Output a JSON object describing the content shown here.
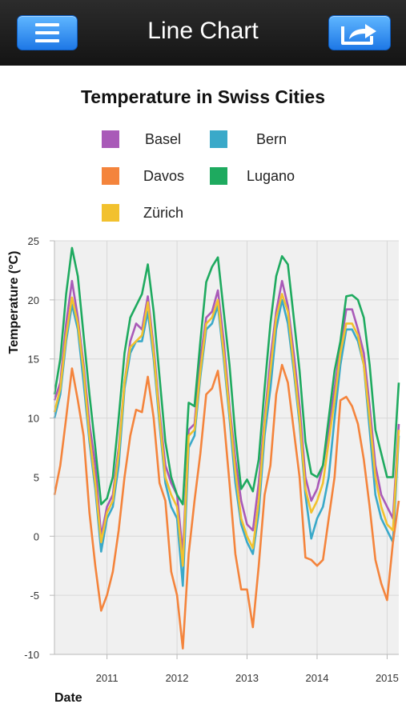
{
  "header": {
    "title": "Line Chart",
    "menu_icon": "hamburger-menu-icon",
    "share_icon": "share-icon"
  },
  "colors": {
    "nav_button": "#2a8cf5",
    "plot_background": "#f0f0f0",
    "grid": "#d8d8d8"
  },
  "chart_data": {
    "type": "line",
    "title": "Temperature in Swiss Cities",
    "xlabel": "Date",
    "ylabel": "Temperature (°C)",
    "ylim": [
      -10,
      25
    ],
    "yticks": [
      -10,
      -5,
      0,
      5,
      10,
      15,
      20,
      25
    ],
    "xlim": [
      "2010-04",
      "2015-03"
    ],
    "xticks": [
      "2011",
      "2012",
      "2013",
      "2014",
      "2015"
    ],
    "grid": true,
    "legend_placement": "top",
    "x": [
      "2010-04",
      "2010-05",
      "2010-06",
      "2010-07",
      "2010-08",
      "2010-09",
      "2010-10",
      "2010-11",
      "2010-12",
      "2011-01",
      "2011-02",
      "2011-03",
      "2011-04",
      "2011-05",
      "2011-06",
      "2011-07",
      "2011-08",
      "2011-09",
      "2011-10",
      "2011-11",
      "2011-12",
      "2012-01",
      "2012-02",
      "2012-03",
      "2012-04",
      "2012-05",
      "2012-06",
      "2012-07",
      "2012-08",
      "2012-09",
      "2012-10",
      "2012-11",
      "2012-12",
      "2013-01",
      "2013-02",
      "2013-03",
      "2013-04",
      "2013-05",
      "2013-06",
      "2013-07",
      "2013-08",
      "2013-09",
      "2013-10",
      "2013-11",
      "2013-12",
      "2014-01",
      "2014-02",
      "2014-03",
      "2014-04",
      "2014-05",
      "2014-06",
      "2014-07",
      "2014-08",
      "2014-09",
      "2014-10",
      "2014-11",
      "2014-12",
      "2015-01",
      "2015-02",
      "2015-03"
    ],
    "series": [
      {
        "name": "Basel",
        "color": "#a95ab8",
        "values": [
          11.5,
          13,
          18,
          21.6,
          18.5,
          14.5,
          9.5,
          6,
          0,
          2.5,
          3.5,
          7.5,
          13,
          16.5,
          18,
          17.5,
          20.3,
          16,
          10.5,
          6,
          4.5,
          3.5,
          -1.5,
          9,
          9.5,
          15,
          18.5,
          19,
          20.8,
          16.5,
          11,
          6.5,
          3,
          1,
          0.5,
          4.5,
          10,
          15,
          19,
          21.6,
          19.5,
          15.5,
          11,
          5,
          3,
          4,
          6,
          9,
          12.5,
          16,
          19.2,
          19.2,
          17.5,
          15.5,
          11,
          6,
          3.5,
          2.5,
          1.5,
          9.5
        ]
      },
      {
        "name": "Bern",
        "color": "#3aa9c9",
        "values": [
          10,
          12,
          16.5,
          19.6,
          17.5,
          13,
          8,
          4,
          -1.3,
          1.5,
          2.5,
          6,
          12.5,
          15.5,
          16.5,
          16.5,
          19,
          15,
          9.5,
          4.5,
          2.5,
          1.5,
          -4.2,
          7.5,
          8.5,
          13.5,
          17.5,
          18,
          19.5,
          15,
          10,
          4.5,
          1,
          -0.5,
          -1.5,
          2,
          8.5,
          12.5,
          17.5,
          20,
          18,
          14,
          9.5,
          3.5,
          -0.2,
          1.5,
          2.5,
          5,
          10,
          14.5,
          17.5,
          17.5,
          16.5,
          14.5,
          9,
          3.5,
          1.5,
          0.5,
          -0.5,
          8.5
        ]
      },
      {
        "name": "Davos",
        "color": "#f4843c",
        "values": [
          3.5,
          6,
          10,
          14.2,
          11.5,
          8.5,
          2,
          -2.5,
          -6.3,
          -5,
          -3,
          0.5,
          5,
          8.5,
          10.7,
          10.5,
          13.5,
          10,
          4.5,
          3,
          -3,
          -5,
          -9.5,
          -1.5,
          3,
          7,
          12,
          12.5,
          14,
          10,
          4.5,
          -1.5,
          -4.5,
          -4.5,
          -7.7,
          -2.5,
          3.5,
          6,
          12,
          14.5,
          13,
          9,
          5,
          -1.8,
          -2,
          -2.5,
          -2,
          1.5,
          5,
          11.5,
          11.8,
          11,
          9.5,
          6.5,
          2.5,
          -2,
          -4,
          -5.4,
          -0.5,
          3
        ]
      },
      {
        "name": "Lugano",
        "color": "#1eaa5f",
        "values": [
          12,
          15,
          20.5,
          24.4,
          22,
          17,
          12,
          7.5,
          2.7,
          3.2,
          5,
          10,
          15.5,
          18.5,
          19.5,
          20.5,
          23,
          19,
          13.5,
          8,
          5,
          3.5,
          2.7,
          11.3,
          11,
          16.5,
          21.5,
          22.8,
          23.6,
          19,
          14.5,
          8.5,
          4,
          4.8,
          3.8,
          6.5,
          12.5,
          18,
          22,
          23.7,
          23,
          18.5,
          14,
          8,
          5.3,
          5,
          6,
          10,
          14,
          16.5,
          20.3,
          20.4,
          20,
          18.5,
          14.5,
          9,
          7,
          5,
          5,
          13
        ]
      },
      {
        "name": "Zürich",
        "color": "#f2c12e",
        "values": [
          10.5,
          12.5,
          17,
          20.2,
          18,
          14,
          8.5,
          4.5,
          -0.5,
          2,
          3,
          7,
          13,
          16,
          16.5,
          17,
          19.8,
          15.5,
          10,
          5,
          3.5,
          2.5,
          -2.5,
          8.5,
          9,
          14,
          18,
          18.5,
          20,
          15.5,
          10.5,
          5.5,
          1.5,
          0,
          -1,
          3,
          9.5,
          14,
          18.5,
          20.5,
          19,
          14.5,
          10,
          4,
          2,
          3,
          4.5,
          8,
          11.5,
          15.5,
          18,
          18,
          17,
          14.5,
          10,
          5,
          2.5,
          1,
          0.5,
          9
        ]
      }
    ]
  }
}
